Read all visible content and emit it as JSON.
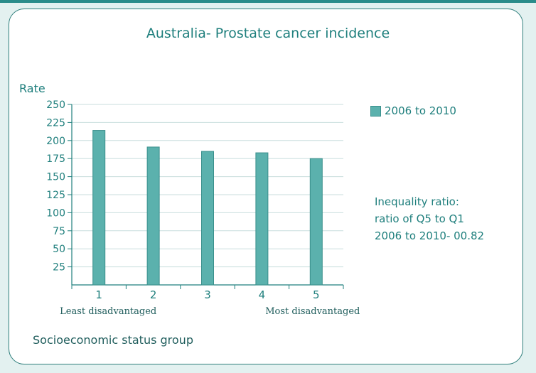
{
  "chart_data": {
    "type": "bar",
    "title": "Australia- Prostate cancer incidence",
    "ylabel": "Rate",
    "xlabel": "Socioeconomic status group",
    "categories": [
      "1",
      "2",
      "3",
      "4",
      "5"
    ],
    "category_sublabels": {
      "first": "Least disadvantaged",
      "last": "Most disadvantaged"
    },
    "series": [
      {
        "name": "2006 to 2010",
        "values": [
          214,
          191,
          185,
          183,
          175
        ],
        "color": "#5bb1ad"
      }
    ],
    "ylim": [
      0,
      250
    ],
    "yticks": [
      25,
      50,
      75,
      100,
      125,
      150,
      175,
      200,
      225,
      250
    ],
    "grid": true,
    "legend_position": "right"
  },
  "annotation": {
    "lines": [
      "Inequality ratio:",
      "ratio of Q5 to Q1",
      "2006 to 2010- 00.82"
    ]
  },
  "colors": {
    "accent": "#1f7f7d",
    "bar": "#5bb1ad",
    "background": "#e3f1f0"
  }
}
